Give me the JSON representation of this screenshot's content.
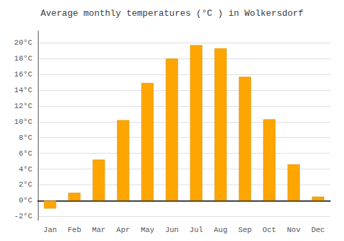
{
  "chart_data": {
    "type": "bar",
    "title": "Average monthly temperatures (°C ) in Wolkersdorf",
    "categories": [
      "Jan",
      "Feb",
      "Mar",
      "Apr",
      "May",
      "Jun",
      "Jul",
      "Aug",
      "Sep",
      "Oct",
      "Nov",
      "Dec"
    ],
    "values": [
      -1.0,
      1.0,
      5.2,
      10.2,
      14.9,
      18.0,
      19.7,
      19.3,
      15.7,
      10.3,
      4.6,
      0.5
    ],
    "color": "#FFA500",
    "ylim": [
      -2.5,
      21.5
    ],
    "yticks": [
      {
        "value": -2,
        "label": "-2°C"
      },
      {
        "value": 0,
        "label": "0°C"
      },
      {
        "value": 2,
        "label": "2°C"
      },
      {
        "value": 4,
        "label": "4°C"
      },
      {
        "value": 6,
        "label": "6°C"
      },
      {
        "value": 8,
        "label": "8°C"
      },
      {
        "value": 10,
        "label": "10°C"
      },
      {
        "value": 12,
        "label": "12°C"
      },
      {
        "value": 14,
        "label": "14°C"
      },
      {
        "value": 16,
        "label": "16°C"
      },
      {
        "value": 18,
        "label": "18°C"
      },
      {
        "value": 20,
        "label": "20°C"
      }
    ],
    "grid": true
  }
}
